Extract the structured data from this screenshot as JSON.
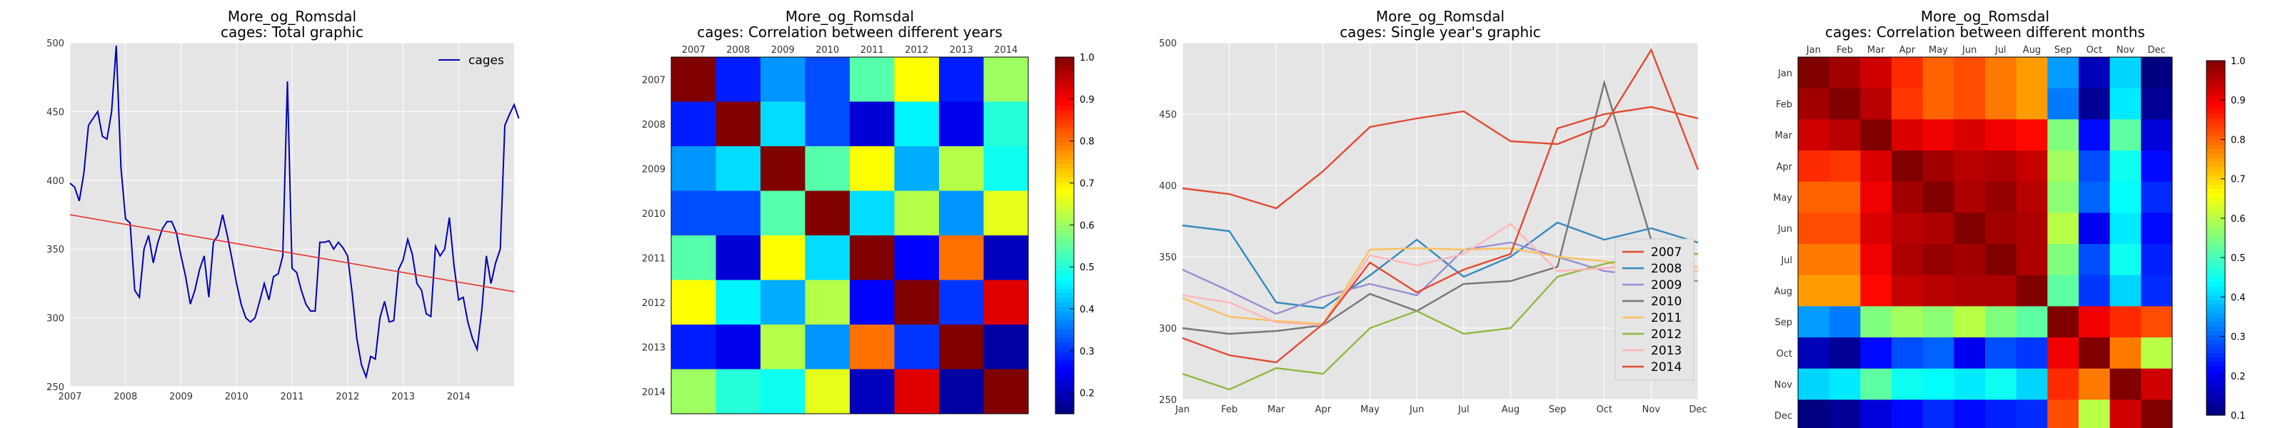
{
  "chart_data": [
    {
      "type": "line",
      "title": [
        "More_og_Romsdal",
        "cages: Total graphic"
      ],
      "xticks": [
        "2007",
        "2008",
        "2009",
        "2010",
        "2011",
        "2012",
        "2013",
        "2014"
      ],
      "yticks": [
        "250",
        "300",
        "350",
        "400",
        "450",
        "500"
      ],
      "ylim": [
        250,
        500
      ],
      "xlim": [
        2007,
        2015
      ],
      "legend": {
        "position": "top-right",
        "entries": [
          "cages"
        ]
      },
      "series": [
        {
          "name": "cages",
          "color": "#0000b3",
          "start_year": 2007,
          "values": [
            398,
            395,
            385,
            405,
            440,
            445,
            450,
            432,
            430,
            450,
            498,
            410,
            372,
            369,
            320,
            315,
            350,
            360,
            340,
            355,
            365,
            370,
            370,
            362,
            345,
            330,
            310,
            320,
            335,
            345,
            315,
            355,
            360,
            375,
            360,
            343,
            325,
            310,
            300,
            297,
            300,
            312,
            325,
            313,
            330,
            332,
            345,
            472,
            336,
            333,
            320,
            310,
            305,
            305,
            355,
            355,
            356,
            350,
            355,
            351,
            345,
            318,
            285,
            266,
            257,
            272,
            270,
            300,
            312,
            297,
            298,
            335,
            342,
            357,
            346,
            325,
            320,
            303,
            301,
            352,
            345,
            350,
            373,
            338,
            313,
            315,
            297,
            285,
            277,
            305,
            345,
            325,
            340,
            350,
            440,
            448,
            455,
            445
          ]
        },
        {
          "name": "trend",
          "color": "#e8302a",
          "x": [
            2007,
            2015
          ],
          "values": [
            375,
            319
          ]
        }
      ]
    },
    {
      "type": "heatmap",
      "title": [
        "More_og_Romsdal",
        "cages: Correlation between different years"
      ],
      "labels": [
        "2007",
        "2008",
        "2009",
        "2010",
        "2011",
        "2012",
        "2013",
        "2014"
      ],
      "vmin": 0.15,
      "vmax": 1.0,
      "colorbar_ticks": [
        "0.2",
        "0.3",
        "0.4",
        "0.5",
        "0.6",
        "0.7",
        "0.8",
        "0.9",
        "1.0"
      ],
      "values": [
        [
          1.0,
          0.28,
          0.38,
          0.32,
          0.54,
          0.68,
          0.28,
          0.6
        ],
        [
          0.28,
          1.0,
          0.44,
          0.32,
          0.22,
          0.46,
          0.24,
          0.5
        ],
        [
          0.38,
          0.44,
          1.0,
          0.54,
          0.68,
          0.4,
          0.62,
          0.48
        ],
        [
          0.32,
          0.32,
          0.54,
          1.0,
          0.44,
          0.62,
          0.38,
          0.66
        ],
        [
          0.54,
          0.22,
          0.68,
          0.44,
          1.0,
          0.26,
          0.8,
          0.2
        ],
        [
          0.68,
          0.46,
          0.4,
          0.62,
          0.26,
          1.0,
          0.3,
          0.92
        ],
        [
          0.28,
          0.24,
          0.62,
          0.38,
          0.8,
          0.3,
          1.0,
          0.18
        ],
        [
          0.6,
          0.5,
          0.48,
          0.66,
          0.2,
          0.92,
          0.18,
          1.0
        ]
      ]
    },
    {
      "type": "line",
      "title": [
        "More_og_Romsdal",
        "cages: Single year's graphic"
      ],
      "categories": [
        "Jan",
        "Feb",
        "Mar",
        "Apr",
        "May",
        "Jun",
        "Jul",
        "Aug",
        "Sep",
        "Oct",
        "Nov",
        "Dec"
      ],
      "yticks": [
        "250",
        "300",
        "350",
        "400",
        "450",
        "500"
      ],
      "ylim": [
        250,
        500
      ],
      "legend": {
        "position": "lower-right"
      },
      "series": [
        {
          "name": "2007",
          "color": "#e24a33",
          "values": [
            398,
            394,
            384,
            410,
            441,
            447,
            452,
            431,
            429,
            442,
            495,
            411
          ]
        },
        {
          "name": "2008",
          "color": "#348abd",
          "values": [
            372,
            368,
            318,
            314,
            337,
            362,
            336,
            350,
            374,
            362,
            370,
            360
          ]
        },
        {
          "name": "2009",
          "color": "#988ed5",
          "values": [
            341,
            326,
            310,
            322,
            331,
            323,
            355,
            360,
            350,
            340,
            336,
            333
          ]
        },
        {
          "name": "2010",
          "color": "#777777",
          "values": [
            300,
            296,
            298,
            302,
            324,
            312,
            331,
            333,
            343,
            472,
            362,
            null
          ]
        },
        {
          "name": "2011",
          "color": "#fbc15e",
          "values": [
            321,
            308,
            305,
            303,
            355,
            356,
            355,
            356,
            350,
            347,
            338,
            343
          ]
        },
        {
          "name": "2012",
          "color": "#8eba42",
          "values": [
            268,
            257,
            272,
            268,
            300,
            312,
            296,
            300,
            336,
            345,
            352,
            352
          ]
        },
        {
          "name": "2013",
          "color": "#ffb5b8",
          "values": [
            323,
            318,
            304,
            302,
            351,
            344,
            352,
            373,
            340,
            342,
            345,
            340
          ]
        },
        {
          "name": "2014",
          "color": "#e24a33",
          "values": [
            293,
            281,
            276,
            303,
            346,
            325,
            341,
            352,
            440,
            450,
            455,
            447
          ]
        }
      ]
    },
    {
      "type": "heatmap",
      "title": [
        "More_og_Romsdal",
        "cages: Correlation between different months"
      ],
      "labels": [
        "Jan",
        "Feb",
        "Mar",
        "Apr",
        "May",
        "Jun",
        "Jul",
        "Aug",
        "Sep",
        "Oct",
        "Nov",
        "Dec"
      ],
      "vmin": 0.1,
      "vmax": 1.0,
      "colorbar_ticks": [
        "0.1",
        "0.2",
        "0.3",
        "0.4",
        "0.5",
        "0.6",
        "0.7",
        "0.8",
        "0.9",
        "1.0"
      ],
      "values": [
        [
          1.0,
          0.97,
          0.93,
          0.85,
          0.8,
          0.82,
          0.78,
          0.75,
          0.35,
          0.15,
          0.4,
          0.1
        ],
        [
          0.97,
          1.0,
          0.95,
          0.84,
          0.8,
          0.82,
          0.78,
          0.75,
          0.32,
          0.12,
          0.42,
          0.12
        ],
        [
          0.93,
          0.95,
          1.0,
          0.92,
          0.9,
          0.92,
          0.9,
          0.88,
          0.55,
          0.22,
          0.52,
          0.18
        ],
        [
          0.85,
          0.84,
          0.92,
          1.0,
          0.97,
          0.95,
          0.96,
          0.94,
          0.58,
          0.28,
          0.45,
          0.22
        ],
        [
          0.8,
          0.8,
          0.9,
          0.97,
          1.0,
          0.96,
          0.98,
          0.95,
          0.56,
          0.3,
          0.44,
          0.25
        ],
        [
          0.82,
          0.82,
          0.92,
          0.95,
          0.96,
          1.0,
          0.97,
          0.96,
          0.6,
          0.2,
          0.42,
          0.22
        ],
        [
          0.78,
          0.78,
          0.9,
          0.96,
          0.98,
          0.97,
          1.0,
          0.96,
          0.55,
          0.28,
          0.45,
          0.24
        ],
        [
          0.75,
          0.75,
          0.88,
          0.94,
          0.95,
          0.96,
          0.96,
          1.0,
          0.52,
          0.26,
          0.4,
          0.25
        ],
        [
          0.35,
          0.32,
          0.55,
          0.58,
          0.56,
          0.6,
          0.55,
          0.52,
          1.0,
          0.9,
          0.85,
          0.82
        ],
        [
          0.15,
          0.12,
          0.22,
          0.28,
          0.3,
          0.2,
          0.28,
          0.26,
          0.9,
          1.0,
          0.78,
          0.6
        ],
        [
          0.4,
          0.42,
          0.52,
          0.45,
          0.44,
          0.42,
          0.45,
          0.4,
          0.85,
          0.78,
          1.0,
          0.93
        ],
        [
          0.1,
          0.12,
          0.18,
          0.22,
          0.25,
          0.22,
          0.24,
          0.25,
          0.82,
          0.6,
          0.93,
          1.0
        ]
      ]
    }
  ]
}
